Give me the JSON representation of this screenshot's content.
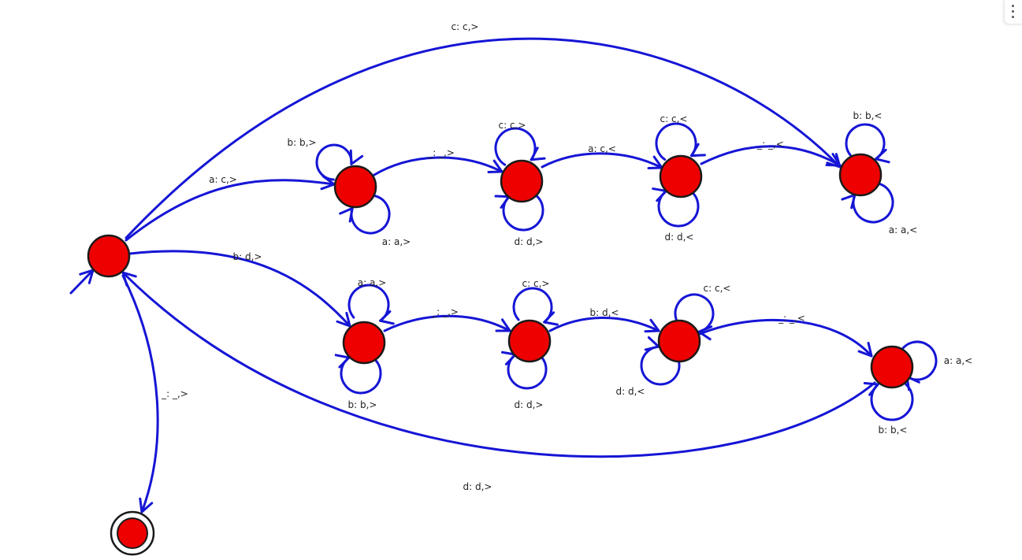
{
  "diagram": {
    "colors": {
      "edge": "#1515d6",
      "state_fill": "#ee0000",
      "state_stroke": "#1a1a1a",
      "label": "#222222"
    },
    "states": [
      {
        "id": "q0",
        "kind": "start"
      },
      {
        "id": "qA1",
        "kind": "normal"
      },
      {
        "id": "qA2",
        "kind": "normal"
      },
      {
        "id": "qA3",
        "kind": "normal"
      },
      {
        "id": "qA4",
        "kind": "normal"
      },
      {
        "id": "qB1",
        "kind": "normal"
      },
      {
        "id": "qB2",
        "kind": "normal"
      },
      {
        "id": "qB3",
        "kind": "normal"
      },
      {
        "id": "qB4",
        "kind": "normal"
      },
      {
        "id": "qF",
        "kind": "accept"
      }
    ],
    "transitions": [
      {
        "id": "t-q0-qA4",
        "from": "q0",
        "to": "qA4",
        "label": "c: c,>"
      },
      {
        "id": "t-q0-qA1",
        "from": "q0",
        "to": "qA1",
        "label": "a: c,>"
      },
      {
        "id": "t-qA1-qA2",
        "from": "qA1",
        "to": "qA2",
        "label": "_: _,>"
      },
      {
        "id": "t-qA2-qA3",
        "from": "qA2",
        "to": "qA3",
        "label": "a: c,<"
      },
      {
        "id": "t-qA3-qA4",
        "from": "qA3",
        "to": "qA4",
        "label": "_: _,<"
      },
      {
        "id": "t-q0-qB1",
        "from": "q0",
        "to": "qB1",
        "label": "b: d,>"
      },
      {
        "id": "t-qB1-qB2",
        "from": "qB1",
        "to": "qB2",
        "label": "_: _,>"
      },
      {
        "id": "t-qB2-qB3",
        "from": "qB2",
        "to": "qB3",
        "label": "b: d,<"
      },
      {
        "id": "t-qB3-qB4",
        "from": "qB3",
        "to": "qB4",
        "label": "_: _,<"
      },
      {
        "id": "t-qB4-q0",
        "from": "qB4",
        "to": "q0",
        "label": "d: d,>"
      },
      {
        "id": "t-q0-qF",
        "from": "q0",
        "to": "qF",
        "label": "_: _,>"
      }
    ],
    "loops": [
      {
        "id": "l-qA1-top",
        "state": "qA1",
        "label": "b: b,>"
      },
      {
        "id": "l-qA1-bot",
        "state": "qA1",
        "label": "a: a,>"
      },
      {
        "id": "l-qA2-top",
        "state": "qA2",
        "label": "c: c,>"
      },
      {
        "id": "l-qA2-bot",
        "state": "qA2",
        "label": "d: d,>"
      },
      {
        "id": "l-qA3-top",
        "state": "qA3",
        "label": "c: c,<"
      },
      {
        "id": "l-qA3-bot",
        "state": "qA3",
        "label": "d: d,<"
      },
      {
        "id": "l-qA4-top",
        "state": "qA4",
        "label": "b: b,<"
      },
      {
        "id": "l-qA4-bot",
        "state": "qA4",
        "label": "a: a,<"
      },
      {
        "id": "l-qB1-top",
        "state": "qB1",
        "label": "a: a,>"
      },
      {
        "id": "l-qB1-bot",
        "state": "qB1",
        "label": "b: b,>"
      },
      {
        "id": "l-qB2-top",
        "state": "qB2",
        "label": "c: c,>"
      },
      {
        "id": "l-qB2-bot",
        "state": "qB2",
        "label": "d: d,>"
      },
      {
        "id": "l-qB3-top",
        "state": "qB3",
        "label": "c: c,<"
      },
      {
        "id": "l-qB3-bot",
        "state": "qB3",
        "label": "d: d,<"
      },
      {
        "id": "l-qB4-right",
        "state": "qB4",
        "label": "a: a,<"
      },
      {
        "id": "l-qB4-bot",
        "state": "qB4",
        "label": "b: b,<"
      }
    ]
  }
}
